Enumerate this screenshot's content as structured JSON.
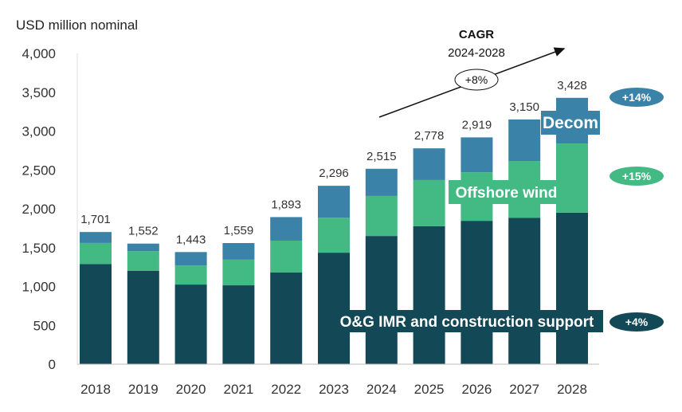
{
  "chart_data": {
    "type": "bar",
    "stacked": true,
    "ylabel": "USD million nominal",
    "ylim": [
      0,
      4000
    ],
    "yticks": [
      0,
      500,
      1000,
      1500,
      2000,
      2500,
      3000,
      3500,
      4000
    ],
    "ytick_labels": [
      "0",
      "500",
      "1,000",
      "1,500",
      "2,000",
      "2,500",
      "3,000",
      "3,500",
      "4,000"
    ],
    "categories": [
      "2018",
      "2019",
      "2020",
      "2021",
      "2022",
      "2023",
      "2024",
      "2025",
      "2026",
      "2027",
      "2028"
    ],
    "series": [
      {
        "name": "O&G IMR and construction support",
        "color": "#134857",
        "cagr": "+4%",
        "values": [
          1290,
          1200,
          1025,
          1015,
          1180,
          1435,
          1650,
          1775,
          1845,
          1885,
          1950
        ]
      },
      {
        "name": "Offshore wind",
        "color": "#43b984",
        "cagr": "+15%",
        "values": [
          270,
          255,
          245,
          330,
          410,
          450,
          515,
          595,
          625,
          730,
          890
        ]
      },
      {
        "name": "Decom",
        "color": "#3a82a8",
        "cagr": "+14%",
        "values": [
          141,
          97,
          173,
          214,
          303,
          411,
          350,
          408,
          449,
          535,
          588
        ]
      }
    ],
    "totals": [
      1701,
      1552,
      1443,
      1559,
      1893,
      2296,
      2515,
      2778,
      2919,
      3150,
      3428
    ],
    "total_labels": [
      "1,701",
      "1,552",
      "1,443",
      "1,559",
      "1,893",
      "2,296",
      "2,515",
      "2,778",
      "2,919",
      "3,150",
      "3,428"
    ],
    "annotation": {
      "title": "CAGR",
      "period": "2024-2028",
      "value": "+8%"
    },
    "grid": false,
    "legend": "inline labels on right"
  }
}
